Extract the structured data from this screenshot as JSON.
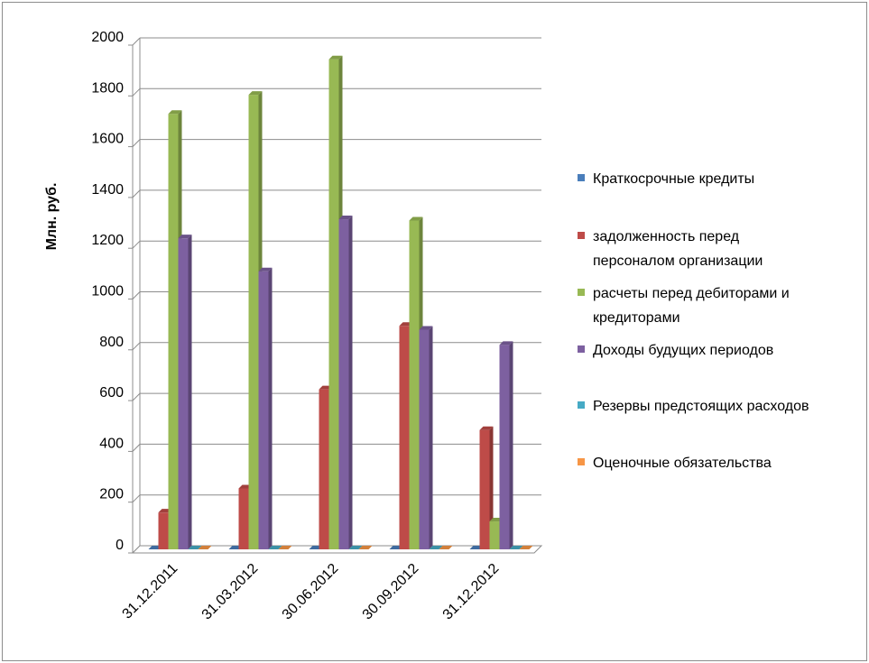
{
  "chart_data": {
    "type": "bar",
    "style": "3d-clustered-column",
    "ylabel": "Млн. руб.",
    "xlabel": "",
    "ylim": [
      0,
      2000
    ],
    "yticks": [
      0,
      200,
      400,
      600,
      800,
      1000,
      1200,
      1400,
      1600,
      1800,
      2000
    ],
    "grid": true,
    "legend_position": "right",
    "categories": [
      "31.12.2011",
      "31.03.2012",
      "30.06.2012",
      "30.09.2012",
      "31.12.2012"
    ],
    "series": [
      {
        "name": "Краткосрочные кредиты",
        "values": [
          0,
          0,
          0,
          0,
          0
        ],
        "color": "#4a7ebb"
      },
      {
        "name": "задолженность перед персоналом организации",
        "legend_lines": [
          "задолженность перед",
          "персоналом организации"
        ],
        "values": [
          145,
          240,
          630,
          880,
          470
        ],
        "color": "#be4b48"
      },
      {
        "name": "расчеты перед дебиторами и кредиторами",
        "legend_lines": [
          "расчеты перед дебиторами и",
          "кредиторами"
        ],
        "values": [
          1715,
          1790,
          1930,
          1295,
          110
        ],
        "color": "#98b954"
      },
      {
        "name": "Доходы будущих периодов",
        "values": [
          1225,
          1095,
          1300,
          865,
          805
        ],
        "color": "#7d60a0"
      },
      {
        "name": "Резервы предстоящих расходов",
        "values": [
          0,
          0,
          0,
          0,
          0
        ],
        "color": "#46aac5"
      },
      {
        "name": "Оценочные обязательства",
        "values": [
          0,
          0,
          0,
          0,
          0
        ],
        "color": "#f79646"
      }
    ]
  }
}
